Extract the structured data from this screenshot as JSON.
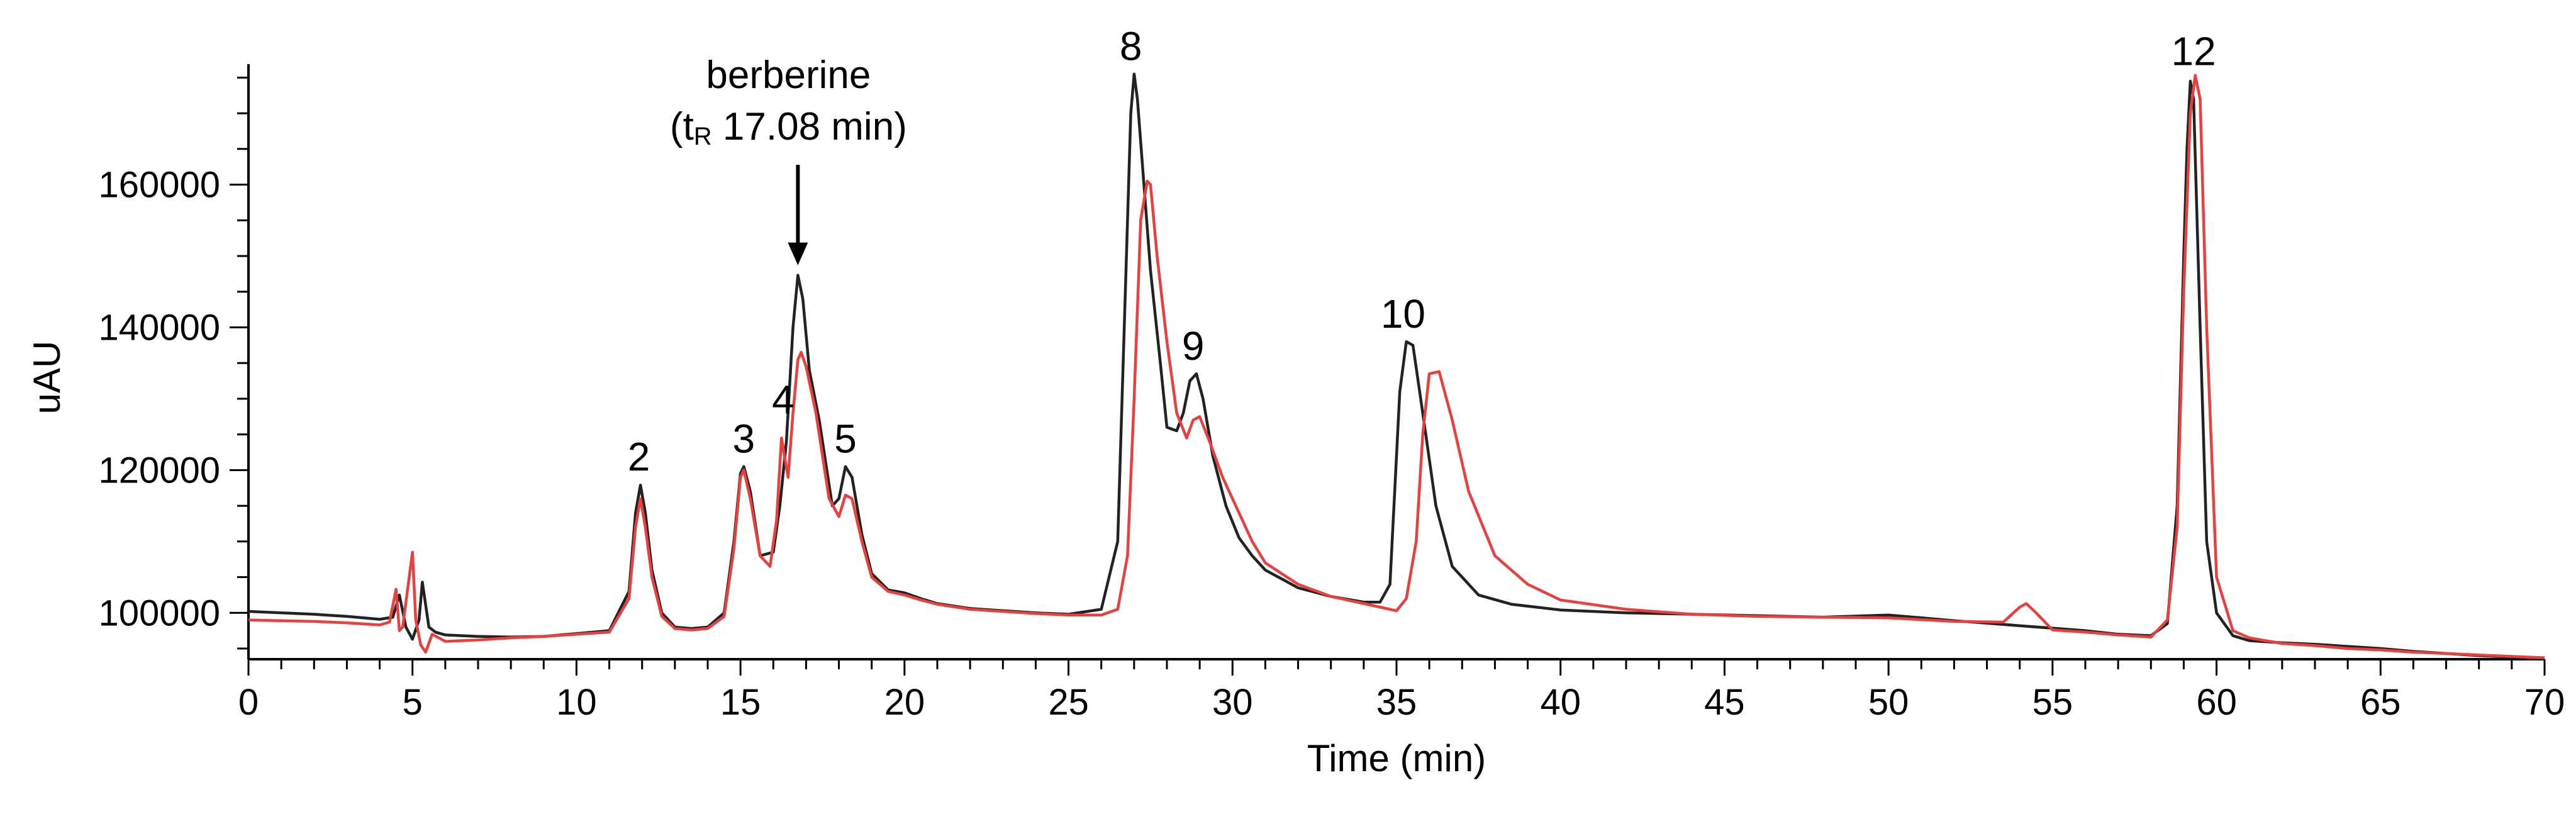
{
  "chart_data": {
    "type": "line",
    "title": "",
    "xlabel": "Time (min)",
    "ylabel": "uAU",
    "xlim": [
      0,
      70
    ],
    "ylim": [
      93500,
      176000
    ],
    "x_ticks": [
      0,
      5,
      10,
      15,
      20,
      25,
      30,
      35,
      40,
      45,
      50,
      55,
      60,
      65,
      70
    ],
    "x_tick_labels": [
      "0",
      "5",
      "10",
      "15",
      "20",
      "25",
      "30",
      "35",
      "40",
      "45",
      "50",
      "55",
      "60",
      "65",
      "70"
    ],
    "y_ticks": [
      100000,
      120000,
      140000,
      160000
    ],
    "y_tick_labels": [
      "100000",
      "120000",
      "140000",
      "160000"
    ],
    "grid": false,
    "series": [
      {
        "name": "black trace",
        "color": "#222222",
        "x": [
          0,
          1,
          2,
          3,
          4,
          4.4,
          4.6,
          4.8,
          5.0,
          5.2,
          5.3,
          5.5,
          5.7,
          6,
          7,
          8,
          9,
          10,
          11,
          11.6,
          11.8,
          11.95,
          12.1,
          12.3,
          12.6,
          13,
          13.5,
          14,
          14.5,
          14.8,
          15.0,
          15.1,
          15.3,
          15.6,
          16.0,
          16.2,
          16.4,
          16.6,
          16.75,
          16.9,
          17.1,
          17.4,
          17.8,
          18.0,
          18.2,
          18.4,
          18.7,
          19,
          19.5,
          20,
          20.5,
          21,
          22,
          23,
          24,
          25,
          26,
          26.5,
          26.7,
          26.9,
          27.0,
          27.1,
          27.3,
          27.5,
          27.8,
          28.0,
          28.3,
          28.5,
          28.7,
          28.9,
          29.1,
          29.4,
          29.8,
          30.2,
          30.6,
          31,
          32,
          33,
          34,
          34.5,
          34.8,
          35.0,
          35.1,
          35.3,
          35.5,
          35.8,
          36.2,
          36.7,
          37.5,
          38.5,
          40,
          42,
          44,
          46,
          48,
          50,
          52,
          54,
          56,
          57,
          58,
          58.5,
          58.8,
          59.0,
          59.1,
          59.2,
          59.3,
          59.5,
          59.7,
          60,
          60.5,
          61,
          62,
          63,
          64,
          65,
          66,
          67,
          68,
          69,
          70
        ],
        "y": [
          100200,
          100000,
          99800,
          99500,
          99100,
          99400,
          102500,
          98000,
          96300,
          99000,
          104300,
          98000,
          97300,
          96900,
          96700,
          96600,
          96700,
          97100,
          97500,
          103000,
          114000,
          117900,
          114000,
          106000,
          100000,
          98000,
          97800,
          98000,
          100000,
          110000,
          119500,
          120500,
          117000,
          108000,
          108500,
          115000,
          124000,
          140000,
          147300,
          144000,
          134000,
          127000,
          115000,
          116000,
          120500,
          119000,
          111000,
          105500,
          103200,
          102800,
          102000,
          101300,
          100600,
          100300,
          100000,
          99800,
          100500,
          110000,
          140000,
          170000,
          175500,
          172000,
          160000,
          148000,
          135000,
          126000,
          125500,
          128000,
          132500,
          133500,
          130000,
          122000,
          115000,
          110500,
          108000,
          106000,
          103500,
          102300,
          101500,
          101500,
          104000,
          122000,
          131000,
          138000,
          137500,
          128000,
          115000,
          106500,
          102500,
          101200,
          100400,
          100000,
          99800,
          99600,
          99400,
          99700,
          98900,
          98200,
          97500,
          97000,
          96800,
          98500,
          115000,
          150000,
          165000,
          174500,
          172000,
          140000,
          110000,
          100000,
          96800,
          96100,
          95800,
          95600,
          95300,
          95000,
          94600,
          94300,
          94000,
          93800,
          93700
        ]
      },
      {
        "name": "red trace",
        "color": "#e8403e",
        "x": [
          0,
          1,
          2,
          3,
          4,
          4.3,
          4.5,
          4.6,
          4.7,
          4.9,
          5.0,
          5.1,
          5.25,
          5.4,
          5.6,
          6,
          7,
          8,
          9,
          10,
          11,
          11.6,
          11.8,
          11.95,
          12.1,
          12.3,
          12.6,
          13,
          13.5,
          14,
          14.5,
          14.8,
          15.0,
          15.1,
          15.3,
          15.6,
          15.9,
          16.1,
          16.25,
          16.45,
          16.6,
          16.75,
          16.85,
          17.0,
          17.3,
          17.7,
          18.0,
          18.2,
          18.4,
          18.7,
          19,
          19.5,
          20,
          20.5,
          21,
          22,
          23,
          24,
          25,
          26,
          26.5,
          26.8,
          27.0,
          27.2,
          27.4,
          27.5,
          27.7,
          28.0,
          28.3,
          28.6,
          28.8,
          29.0,
          29.3,
          29.7,
          30.2,
          30.6,
          31,
          32,
          33,
          34,
          35,
          35.3,
          35.6,
          35.8,
          36.0,
          36.3,
          36.7,
          37.2,
          38,
          39,
          40,
          42,
          44,
          46,
          48,
          50,
          52,
          53.5,
          54,
          54.2,
          54.5,
          55,
          56,
          57,
          58,
          58.5,
          58.8,
          59.0,
          59.2,
          59.35,
          59.5,
          59.7,
          60,
          60.5,
          61,
          62,
          63,
          64,
          65,
          66,
          67,
          68,
          69,
          70
        ],
        "y": [
          99000,
          98900,
          98800,
          98600,
          98300,
          98700,
          103300,
          97500,
          98000,
          105000,
          108500,
          99000,
          95500,
          94500,
          97000,
          96000,
          96200,
          96500,
          96700,
          97000,
          97300,
          102000,
          112000,
          116000,
          112000,
          105000,
          99500,
          97800,
          97600,
          97800,
          99500,
          109000,
          119000,
          120000,
          116000,
          108000,
          106500,
          113000,
          124500,
          119000,
          128000,
          135500,
          136500,
          134500,
          128000,
          116000,
          113500,
          116500,
          116000,
          110000,
          105000,
          103000,
          102500,
          101800,
          101200,
          100500,
          100200,
          99900,
          99700,
          99700,
          100500,
          108000,
          130000,
          155000,
          160500,
          160000,
          150000,
          138000,
          128000,
          124500,
          127000,
          127500,
          124000,
          119000,
          114000,
          110000,
          107000,
          104000,
          102300,
          101300,
          100300,
          102000,
          110000,
          125000,
          133500,
          133800,
          127000,
          117000,
          108000,
          104000,
          101800,
          100500,
          99800,
          99500,
          99400,
          99300,
          98800,
          98700,
          100800,
          101300,
          100000,
          97600,
          97300,
          96900,
          96600,
          99000,
          112000,
          145000,
          170000,
          175300,
          172000,
          140000,
          105000,
          97500,
          96500,
          95700,
          95400,
          95000,
          94800,
          94500,
          94300,
          94100,
          93900,
          93700
        ]
      }
    ],
    "peak_labels": [
      {
        "text": "2",
        "x": 11.9,
        "y": 118000
      },
      {
        "text": "3",
        "x": 15.1,
        "y": 120500
      },
      {
        "text": "4",
        "x": 16.3,
        "y": 126000
      },
      {
        "text": "5",
        "x": 18.2,
        "y": 120500
      },
      {
        "text": "8",
        "x": 26.9,
        "y": 175500
      },
      {
        "text": "9",
        "x": 28.8,
        "y": 133500
      },
      {
        "text": "10",
        "x": 35.2,
        "y": 138000
      },
      {
        "text": "12",
        "x": 59.3,
        "y": 174800
      }
    ],
    "annotation": {
      "line1": "berberine",
      "line2_open": "(t",
      "line2_sub": "R",
      "line2_rest": " 17.08 min)",
      "arrow_x": 16.75,
      "arrow_target_y": 148000
    }
  }
}
